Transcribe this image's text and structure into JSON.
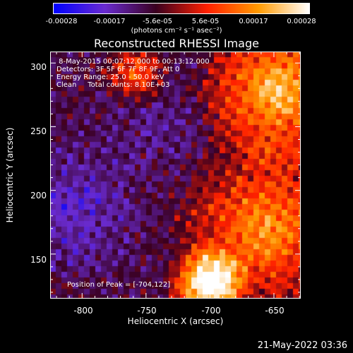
{
  "colorbar": {
    "tick_labels": [
      "-0.00028",
      "-0.00017",
      "-5.6e-05",
      "5.6e-05",
      "0.00017",
      "0.00028"
    ],
    "units_label": "(photons cm⁻² s⁻¹ asec⁻²)",
    "colors": [
      "#0000ff",
      "#6a2bd0",
      "#3a0020",
      "#ff2000",
      "#ff9a00",
      "#ffffff"
    ]
  },
  "title": "Reconstructed RHESSI Image",
  "info": {
    "line1": " 8-May-2015 00:07:12.000 to 00:13:12.000",
    "line2": "Detectors: 3F 5F 6F 7F 8F 9F, Att 0",
    "line3": "Energy Range: 25.0 - 50.0 keV",
    "line4": "Clean     Total counts: 8.10E+03"
  },
  "peak_label": "Position of Peak = [-704,122]",
  "x_axis": {
    "label": "Heliocentric X (arcsec)",
    "ticks": [
      "-800",
      "-750",
      "-700",
      "-650"
    ],
    "range": [
      -825,
      -629
    ]
  },
  "y_axis": {
    "label": "Heliocentric Y (arcsec)",
    "ticks": [
      "150",
      "200",
      "250",
      "300"
    ],
    "range": [
      115,
      309
    ]
  },
  "footer_timestamp": "21-May-2022 03:36"
}
